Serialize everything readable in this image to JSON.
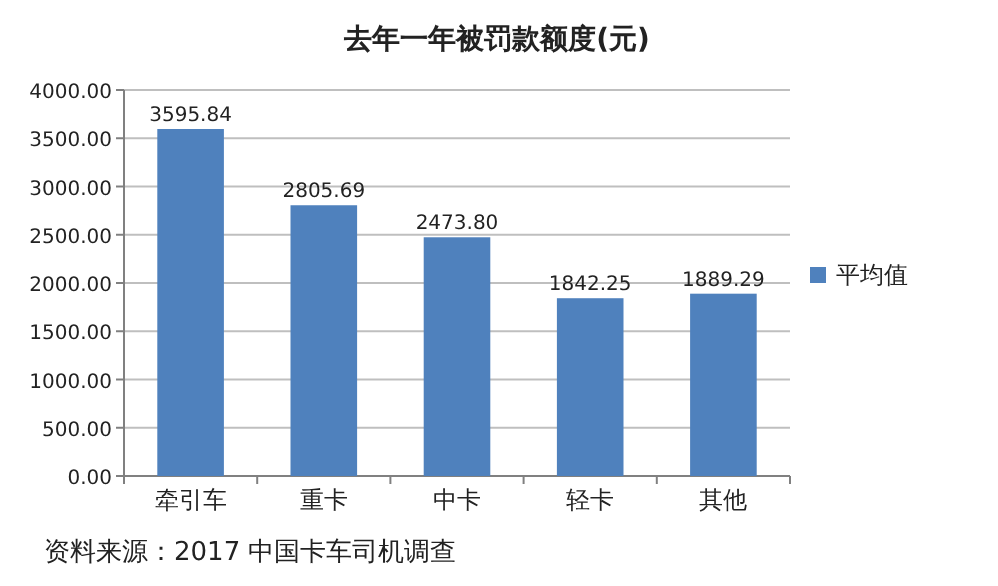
{
  "chart_data": {
    "type": "bar",
    "title": "去年一年被罚款额度(元)",
    "categories": [
      "牵引车",
      "重卡",
      "中卡",
      "轻卡",
      "其他"
    ],
    "series": [
      {
        "name": "平均值",
        "color": "#4f81bd",
        "values": [
          3595.84,
          2805.69,
          2473.8,
          1842.25,
          1889.29
        ],
        "value_labels": [
          "3595.84",
          "2805.69",
          "2473.80",
          "1842.25",
          "1889.29"
        ]
      }
    ],
    "ylim": [
      0,
      4000
    ],
    "yticks": [
      {
        "value": 0,
        "label": "0.00"
      },
      {
        "value": 500,
        "label": "500.00"
      },
      {
        "value": 1000,
        "label": "1000.00"
      },
      {
        "value": 1500,
        "label": "1500.00"
      },
      {
        "value": 2000,
        "label": "2000.00"
      },
      {
        "value": 2500,
        "label": "2500.00"
      },
      {
        "value": 3000,
        "label": "3000.00"
      },
      {
        "value": 3500,
        "label": "3500.00"
      },
      {
        "value": 4000,
        "label": "4000.00"
      }
    ],
    "grid": "y",
    "legend": "right",
    "annotations": [
      "资料来源：2017 中国卡车司机调查"
    ]
  }
}
